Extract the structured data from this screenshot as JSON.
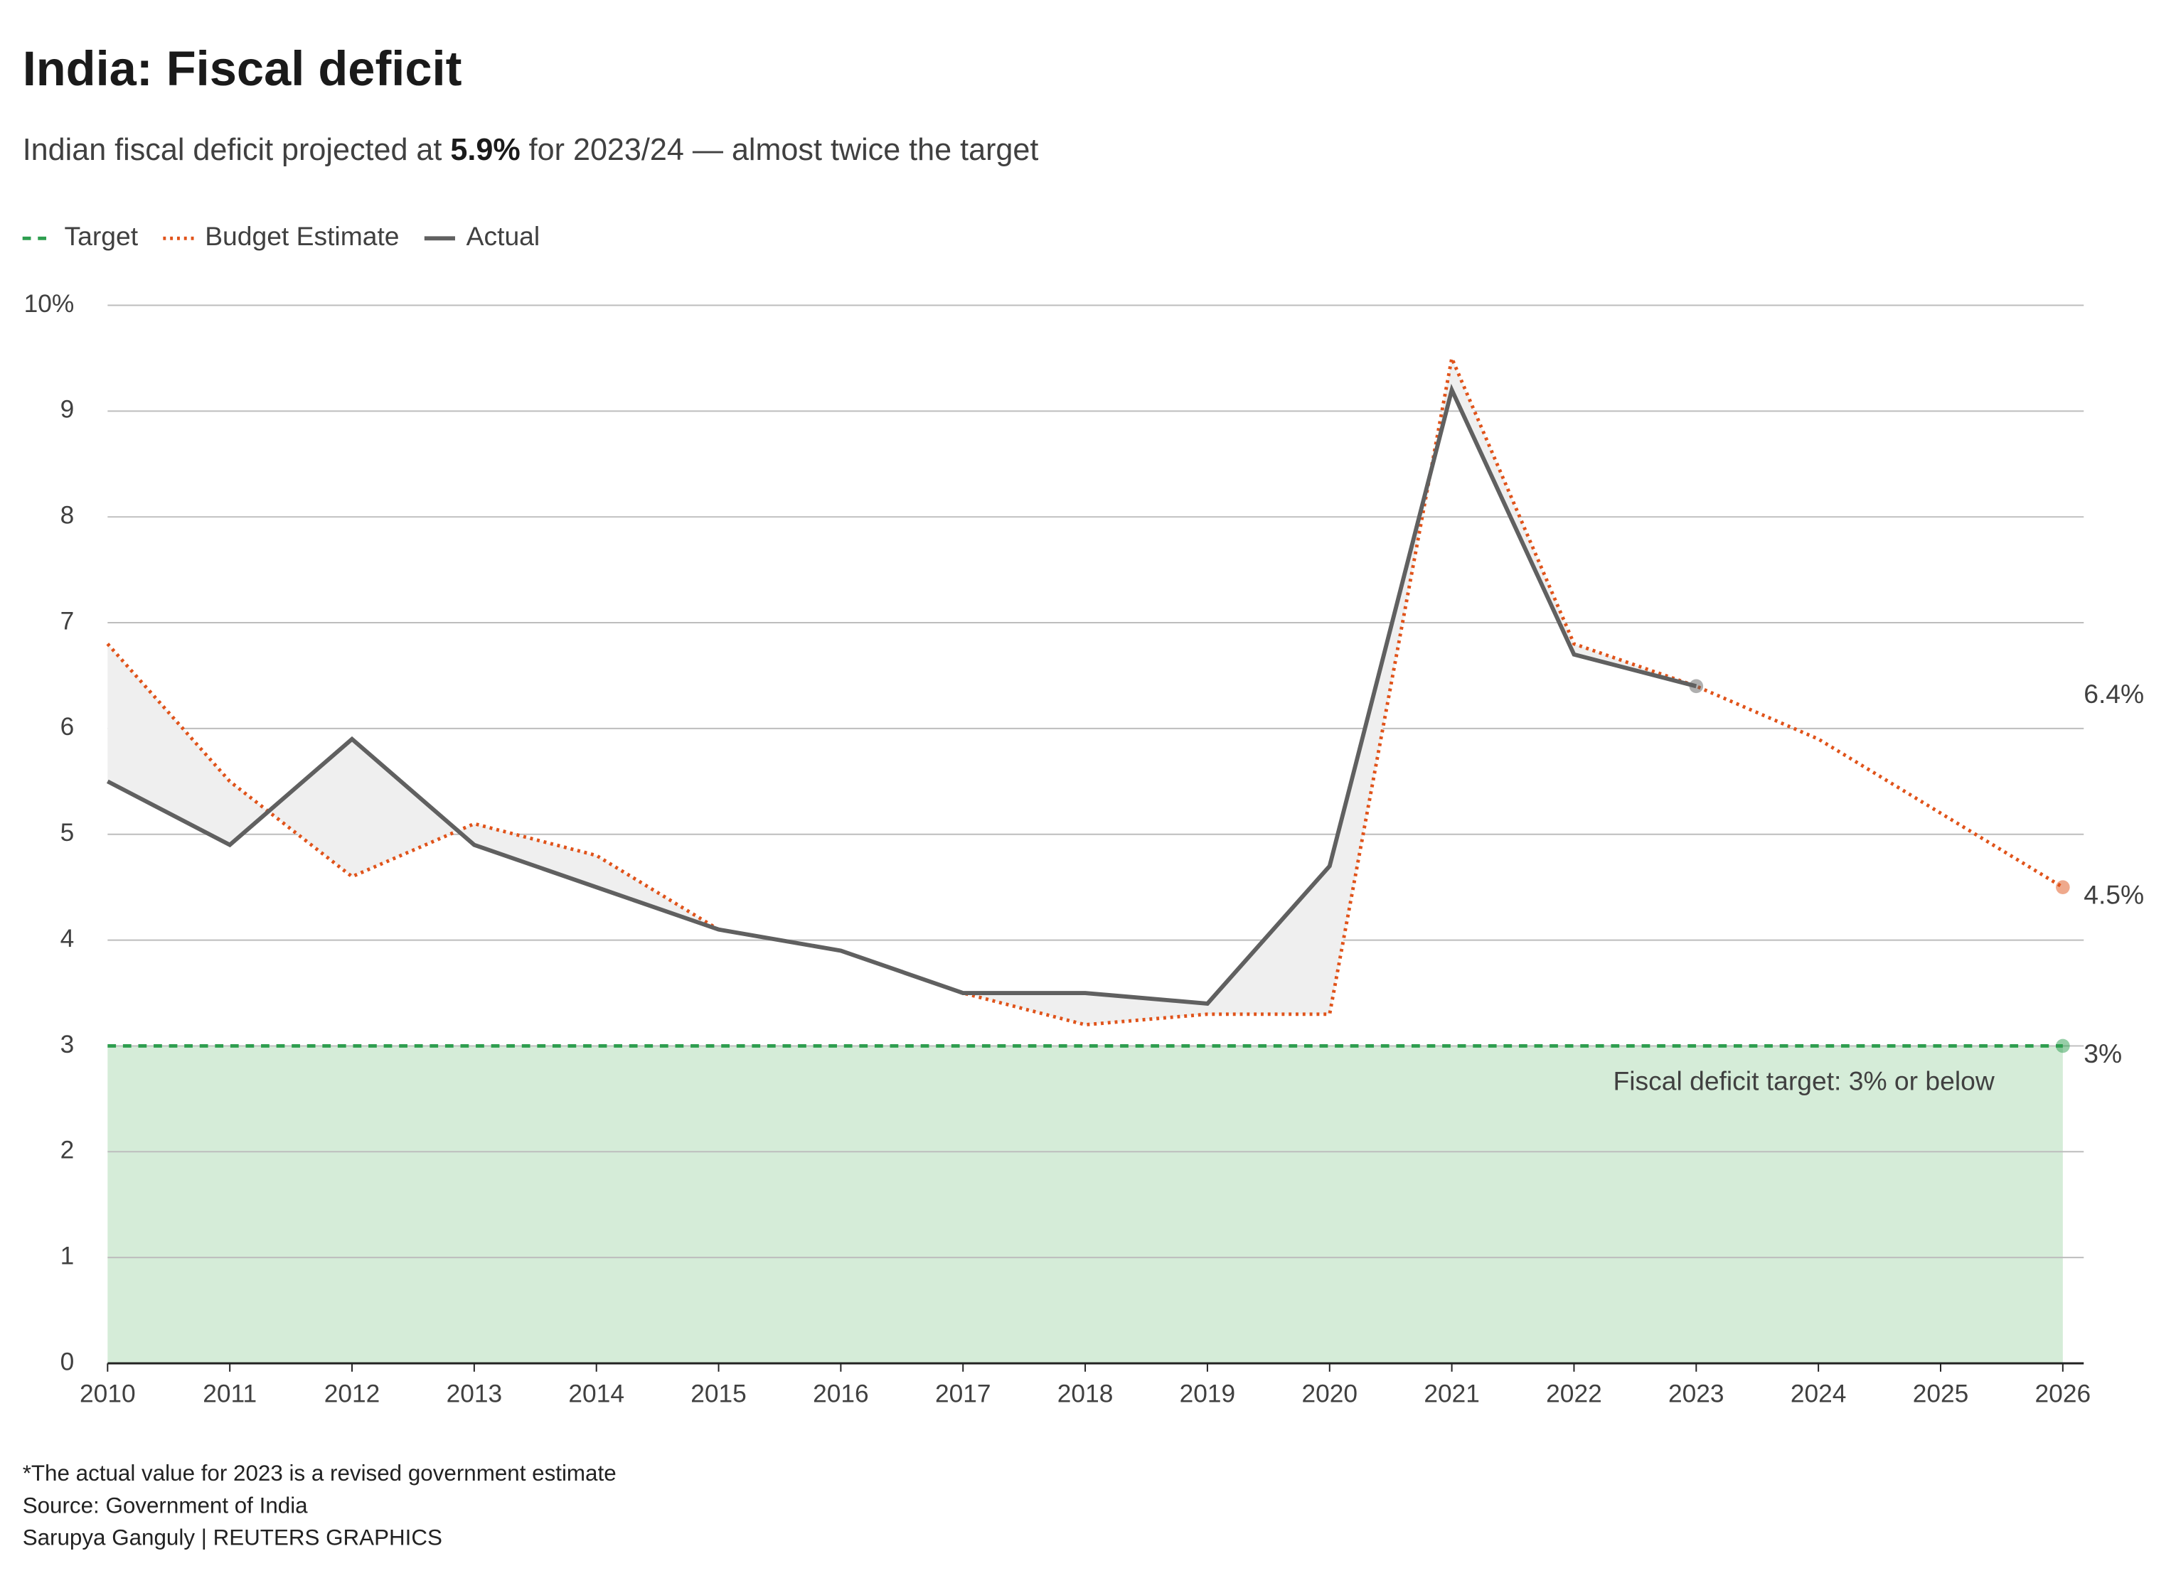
{
  "chart_data": {
    "type": "line",
    "title": "India: Fiscal deficit",
    "subtitle": [
      "Indian fiscal deficit projected at ",
      "5.9%",
      " for 2023/24 — almost twice the target"
    ],
    "x": [
      2010,
      2011,
      2012,
      2013,
      2014,
      2015,
      2016,
      2017,
      2018,
      2019,
      2020,
      2021,
      2022,
      2023,
      2024,
      2025,
      2026
    ],
    "series": [
      {
        "name": "Target",
        "color": "#2e9e4f",
        "dash": "dashed",
        "end_label": "3%",
        "values": [
          3,
          3,
          3,
          3,
          3,
          3,
          3,
          3,
          3,
          3,
          3,
          3,
          3,
          3,
          3,
          3,
          3
        ]
      },
      {
        "name": "Budget Estimate",
        "color": "#e0531a",
        "dash": "dotted",
        "end_label": "4.5%",
        "values": [
          6.8,
          5.5,
          4.6,
          5.1,
          4.8,
          4.1,
          3.9,
          3.5,
          3.2,
          3.3,
          3.3,
          9.5,
          6.8,
          6.4,
          5.9,
          5.2,
          4.5
        ]
      },
      {
        "name": "Actual",
        "color": "#606060",
        "dash": "solid",
        "end_label": "6.4%",
        "values": [
          5.5,
          4.9,
          5.9,
          4.9,
          4.5,
          4.1,
          3.9,
          3.5,
          3.5,
          3.4,
          4.7,
          9.2,
          6.7,
          6.4,
          null,
          null,
          null
        ]
      }
    ],
    "xlim": [
      2010,
      2026
    ],
    "xticks": [
      2010,
      2011,
      2012,
      2013,
      2014,
      2015,
      2016,
      2017,
      2018,
      2019,
      2020,
      2021,
      2022,
      2023,
      2024,
      2025,
      2026
    ],
    "ylim": [
      0,
      10
    ],
    "yticks": [
      0,
      1,
      2,
      3,
      4,
      5,
      6,
      7,
      8,
      9,
      {
        "value": 10,
        "label": "10%"
      }
    ],
    "grid": true,
    "legend": "top-left",
    "annotation": "Fiscal deficit target: 3% or below",
    "footnotes": [
      "*The actual value for 2023 is a revised government estimate",
      "Source: Government of India",
      "Sarupya Ganguly | REUTERS GRAPHICS"
    ]
  }
}
